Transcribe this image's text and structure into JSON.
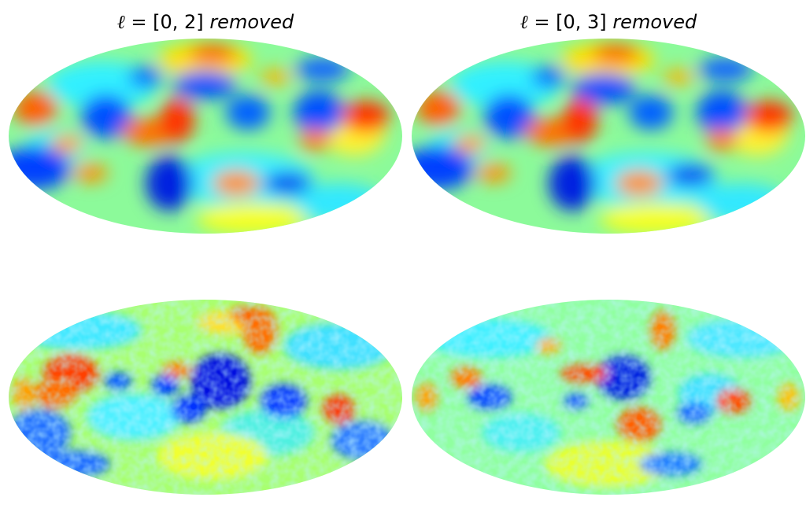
{
  "figure": {
    "panels": [
      {
        "title": {
          "symbol": "ℓ",
          "equation": " = [0, 2] ",
          "word": "removed"
        },
        "maps": [
          "low-multipole-map",
          "high-resolution-map"
        ]
      },
      {
        "title": {
          "symbol": "ℓ",
          "equation": " = [0, 3] ",
          "word": "removed"
        },
        "maps": [
          "low-multipole-map",
          "high-resolution-map"
        ]
      }
    ],
    "projection": "mollweide",
    "colormap": "jet",
    "colormap_stops": [
      "#00008f",
      "#0000ff",
      "#0080ff",
      "#00ffff",
      "#80ff80",
      "#ffff00",
      "#ff8000",
      "#ff0000",
      "#800000"
    ]
  }
}
